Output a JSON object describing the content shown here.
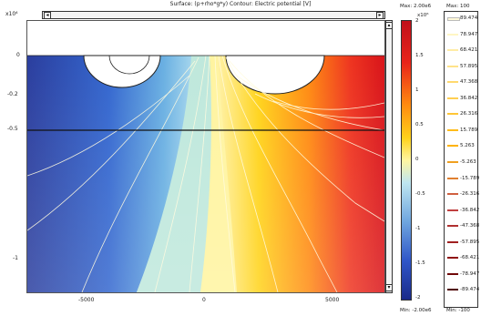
{
  "header": {
    "surface_title": "Surface: (p+rho*g*y)   Contour: Electric potential [V]",
    "y_exponent": "x10⁴"
  },
  "colorbar": {
    "max_label": "Max: 2.00e6",
    "min_label": "Min: -2.00e6",
    "exponent": "x10⁶",
    "ticks": [
      "2",
      "1.5",
      "1",
      "0.5",
      "0",
      "-0.5",
      "-1",
      "-1.5",
      "-2"
    ]
  },
  "contour_legend": {
    "max_label": "Max: 100",
    "min_label": "Min: -100",
    "entries": [
      {
        "label": "89.474",
        "color": "#ffffe0"
      },
      {
        "label": "78.947",
        "color": "#fff6c4"
      },
      {
        "label": "68.421",
        "color": "#ffeca6"
      },
      {
        "label": "57.895",
        "color": "#ffe38a"
      },
      {
        "label": "47.368",
        "color": "#ffd96e"
      },
      {
        "label": "36.842",
        "color": "#ffcf52"
      },
      {
        "label": "26.316",
        "color": "#ffc636"
      },
      {
        "label": "15.789",
        "color": "#ffbc1a"
      },
      {
        "label": "5.263",
        "color": "#ffb300"
      },
      {
        "label": "-5.263",
        "color": "#f0a020"
      },
      {
        "label": "-15.789",
        "color": "#e08030"
      },
      {
        "label": "-26.316",
        "color": "#d06040"
      },
      {
        "label": "-36.842",
        "color": "#c04040"
      },
      {
        "label": "-47.368",
        "color": "#b03030"
      },
      {
        "label": "-57.895",
        "color": "#a02020"
      },
      {
        "label": "-68.421",
        "color": "#901010"
      },
      {
        "label": "-78.947",
        "color": "#700808"
      },
      {
        "label": "-89.474",
        "color": "#500404"
      }
    ]
  },
  "chart_data": {
    "type": "heatmap",
    "title": "Surface: (p+rho*g*y)   Contour: Electric potential [V]",
    "xlabel": "",
    "ylabel": "",
    "x_ticks": [
      "-5000",
      "0",
      "5000"
    ],
    "y_ticks": [
      "0",
      "-0.2",
      "-0.5",
      "-1"
    ],
    "y_scale_exponent": "x10⁴",
    "surface_range": [
      -2000000,
      2000000
    ],
    "contour_range": [
      -100,
      100
    ],
    "contour_levels": [
      89.474,
      78.947,
      68.421,
      57.895,
      47.368,
      36.842,
      26.316,
      15.789,
      5.263,
      -5.263,
      -15.789,
      -26.316,
      -36.842,
      -47.368,
      -57.895,
      -68.421,
      -78.947,
      -89.474
    ],
    "colorscale": [
      "#1a2a8a",
      "#2f56c8",
      "#6fa6df",
      "#bfe6f0",
      "#fff6a0",
      "#ffd21a",
      "#ff8a10",
      "#e8241a",
      "#b80e10"
    ]
  }
}
